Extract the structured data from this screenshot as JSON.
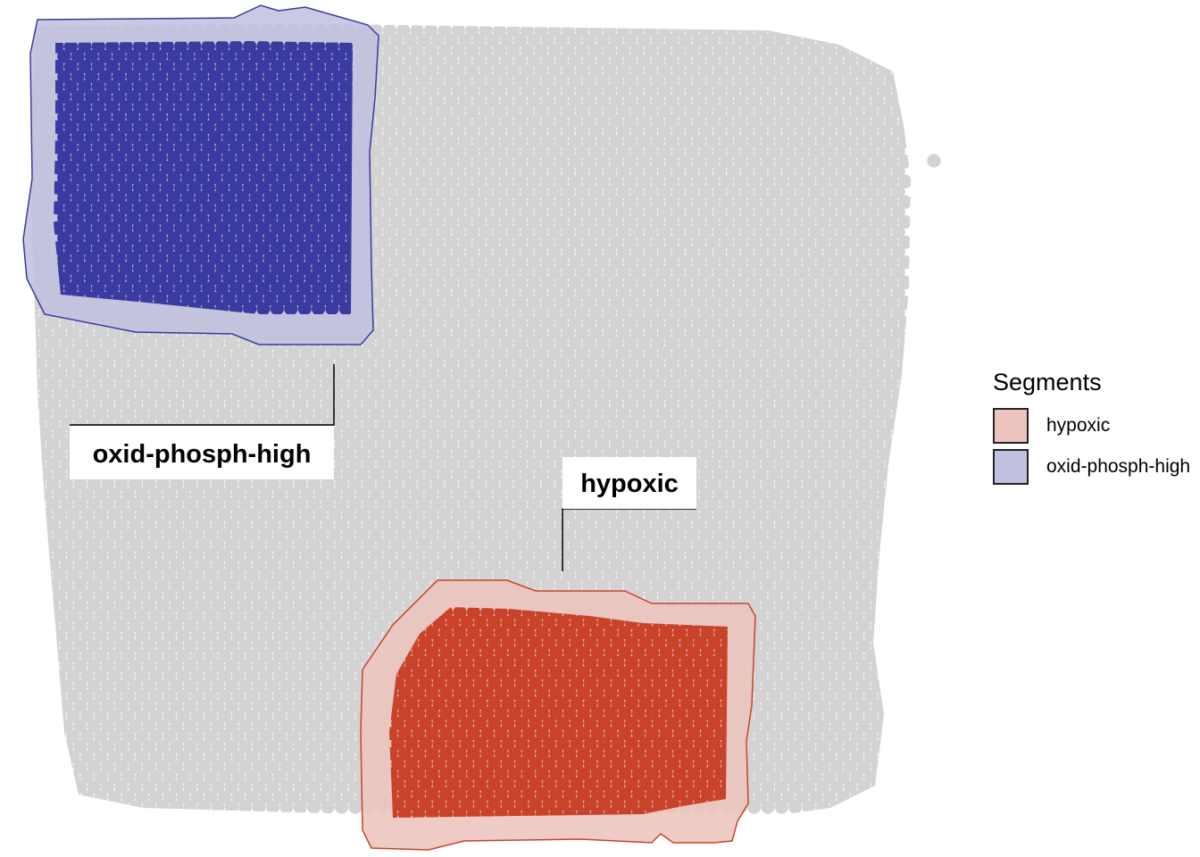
{
  "chart_data": {
    "type": "scatter",
    "description_kind": "spatial spot map with segment outlines",
    "background_spot_color": "#d3d3d3",
    "legend": {
      "title": "Segments",
      "placement": "right",
      "entries": [
        {
          "name": "hypoxic",
          "fill": "#ecc4bd",
          "spot_color": "#c8432a",
          "outline": "#c8432a"
        },
        {
          "name": "oxid-phosph-high",
          "fill": "#c0c0df",
          "spot_color": "#3a3aa0",
          "outline": "#3a3aa0"
        }
      ]
    },
    "segments": [
      {
        "name": "oxid-phosph-high",
        "label": "oxid-phosph-high"
      },
      {
        "name": "hypoxic",
        "label": "hypoxic"
      }
    ],
    "grid": false
  }
}
